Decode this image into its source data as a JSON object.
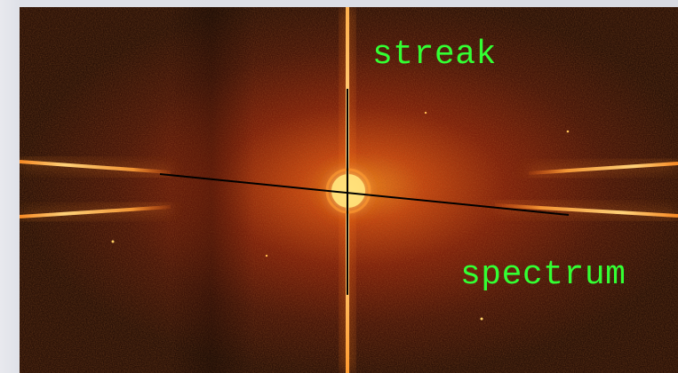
{
  "annotations": {
    "streak_label": "streak",
    "spectrum_label": "spectrum"
  },
  "colors": {
    "annotation_text": "#33ff33",
    "annotation_line": "#000000",
    "image_background": "#1f0603",
    "glow_core": "#fff4a6",
    "glow_outer": "#d64a08"
  }
}
